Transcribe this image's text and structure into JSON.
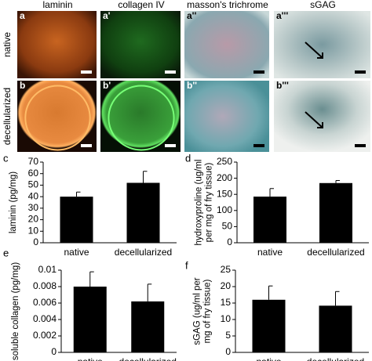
{
  "figure": {
    "columns": [
      "laminin",
      "collagen IV",
      "masson's trichrome",
      "sGAG"
    ],
    "rows": [
      "native",
      "decellularized"
    ],
    "panels": [
      "a",
      "a'",
      "a''",
      "a'''",
      "b",
      "b'",
      "b''",
      "b'''"
    ]
  },
  "chart_data": [
    {
      "type": "bar",
      "panel": "c",
      "ylabel": [
        "laminin (pg/mg)"
      ],
      "categories": [
        "native",
        "decellularized"
      ],
      "values": [
        40,
        52
      ],
      "errors": [
        4,
        10
      ],
      "color": "#000000",
      "ylim": [
        0,
        70
      ],
      "yticks": [
        0,
        10,
        20,
        30,
        40,
        50,
        60,
        70
      ]
    },
    {
      "type": "bar",
      "panel": "d",
      "ylabel": [
        "hydroxyproline (ug/ml",
        "per mg of fry tissue)"
      ],
      "categories": [
        "native",
        "decellularized"
      ],
      "values": [
        143,
        185
      ],
      "errors": [
        25,
        8
      ],
      "color": "#000000",
      "ylim": [
        0,
        250
      ],
      "yticks": [
        0,
        50,
        100,
        150,
        200,
        250
      ]
    },
    {
      "type": "bar",
      "panel": "e",
      "ylabel": [
        "soluble collagen (pg/mg)"
      ],
      "categories": [
        "native",
        "decellularized"
      ],
      "values": [
        0.008,
        0.0062
      ],
      "errors": [
        0.0018,
        0.0021
      ],
      "color": "#000000",
      "ylim": [
        0,
        0.01
      ],
      "yticks": [
        0,
        0.002,
        0.004,
        0.006,
        0.008,
        0.01
      ]
    },
    {
      "type": "bar",
      "panel": "f",
      "ylabel": [
        "sGAG (ug/ml per",
        "mg of fry tissue)"
      ],
      "categories": [
        "native",
        "decellularized"
      ],
      "values": [
        16,
        14.2
      ],
      "errors": [
        4.2,
        4.3
      ],
      "color": "#000000",
      "ylim": [
        0,
        25
      ],
      "yticks": [
        0,
        5,
        10,
        15,
        20,
        25
      ]
    }
  ]
}
